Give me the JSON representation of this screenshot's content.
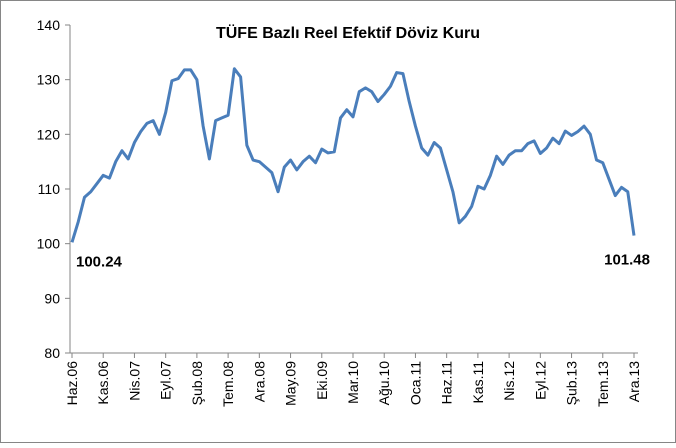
{
  "chart_data": {
    "type": "line",
    "title": "TÜFE Bazlı Reel Efektif Döviz Kuru",
    "categories": [
      "Haz.06",
      null,
      null,
      null,
      null,
      "Kas.06",
      null,
      null,
      null,
      null,
      "Nis.07",
      null,
      null,
      null,
      null,
      "Eyl.07",
      null,
      null,
      null,
      null,
      "Şub.08",
      null,
      null,
      null,
      null,
      "Tem.08",
      null,
      null,
      null,
      null,
      "Ara.08",
      null,
      null,
      null,
      null,
      "May.09",
      null,
      null,
      null,
      null,
      "Eki.09",
      null,
      null,
      null,
      null,
      "Mar.10",
      null,
      null,
      null,
      null,
      "Ağu.10",
      null,
      null,
      null,
      null,
      "Oca.11",
      null,
      null,
      null,
      null,
      "Haz.11",
      null,
      null,
      null,
      null,
      "Kas.11",
      null,
      null,
      null,
      null,
      "Nis.12",
      null,
      null,
      null,
      null,
      "Eyl.12",
      null,
      null,
      null,
      null,
      "Şub.13",
      null,
      null,
      null,
      null,
      "Tem.13",
      null,
      null,
      null,
      null,
      "Ara.13"
    ],
    "series": [
      {
        "color": "#4a7ebb",
        "values": [
          100.24,
          104,
          108.5,
          109.5,
          111,
          112.5,
          112,
          115,
          117,
          115.5,
          118.5,
          120.5,
          122,
          122.5,
          120,
          124,
          129.8,
          130.2,
          131.8,
          131.8,
          130,
          121.5,
          115.5,
          122.5,
          123,
          123.5,
          132,
          130.5,
          118,
          115.3,
          115,
          114,
          113,
          109.5,
          114,
          115.3,
          113.5,
          115,
          116,
          114.8,
          117.3,
          116.6,
          116.8,
          123,
          124.5,
          123.2,
          127.8,
          128.5,
          127.8,
          126,
          127.3,
          128.8,
          131.3,
          131.1,
          126,
          121.5,
          117.5,
          116.2,
          118.5,
          117.5,
          113.5,
          109.5,
          103.8,
          105,
          106.8,
          110.5,
          110,
          112.5,
          116,
          114.5,
          116.2,
          117,
          117,
          118.3,
          118.8,
          116.5,
          117.5,
          119.3,
          118.3,
          120.6,
          119.8,
          120.5,
          121.5,
          120,
          115.3,
          114.8,
          111.8,
          108.8,
          110.3,
          109.5,
          101.48
        ]
      }
    ],
    "ylim": [
      80,
      140
    ],
    "yticks": [
      80,
      90,
      100,
      110,
      120,
      130,
      140
    ],
    "grid": false
  }
}
